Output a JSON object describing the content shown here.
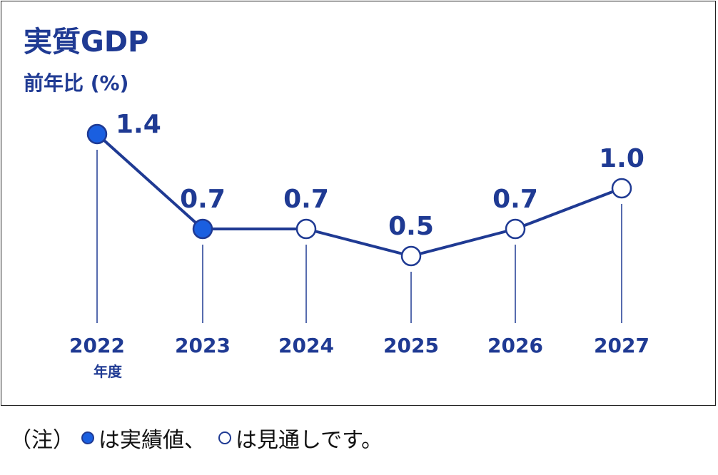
{
  "colors": {
    "primary": "#1f3a93",
    "actual_fill": "#1a5fe0",
    "forecast_fill": "#ffffff",
    "frame": "#222222"
  },
  "chart_data": {
    "type": "line",
    "title": "実質GDP",
    "ylabel": "前年比 (%)",
    "xlabel_unit": "年度",
    "categories": [
      "2022",
      "2023",
      "2024",
      "2025",
      "2026",
      "2027"
    ],
    "series": [
      {
        "values": [
          1.4,
          0.7,
          0.7,
          0.5,
          0.7,
          1.0
        ],
        "data_labels": [
          "1.4",
          "0.7",
          "0.7",
          "0.5",
          "0.7",
          "1.0"
        ],
        "point_types": [
          "actual",
          "actual",
          "forecast",
          "forecast",
          "forecast",
          "forecast"
        ]
      }
    ],
    "grid": false,
    "legend": "none"
  },
  "note": {
    "prefix": "（注）",
    "actual_text": "は実績値、",
    "forecast_text": "は見通しです。"
  }
}
